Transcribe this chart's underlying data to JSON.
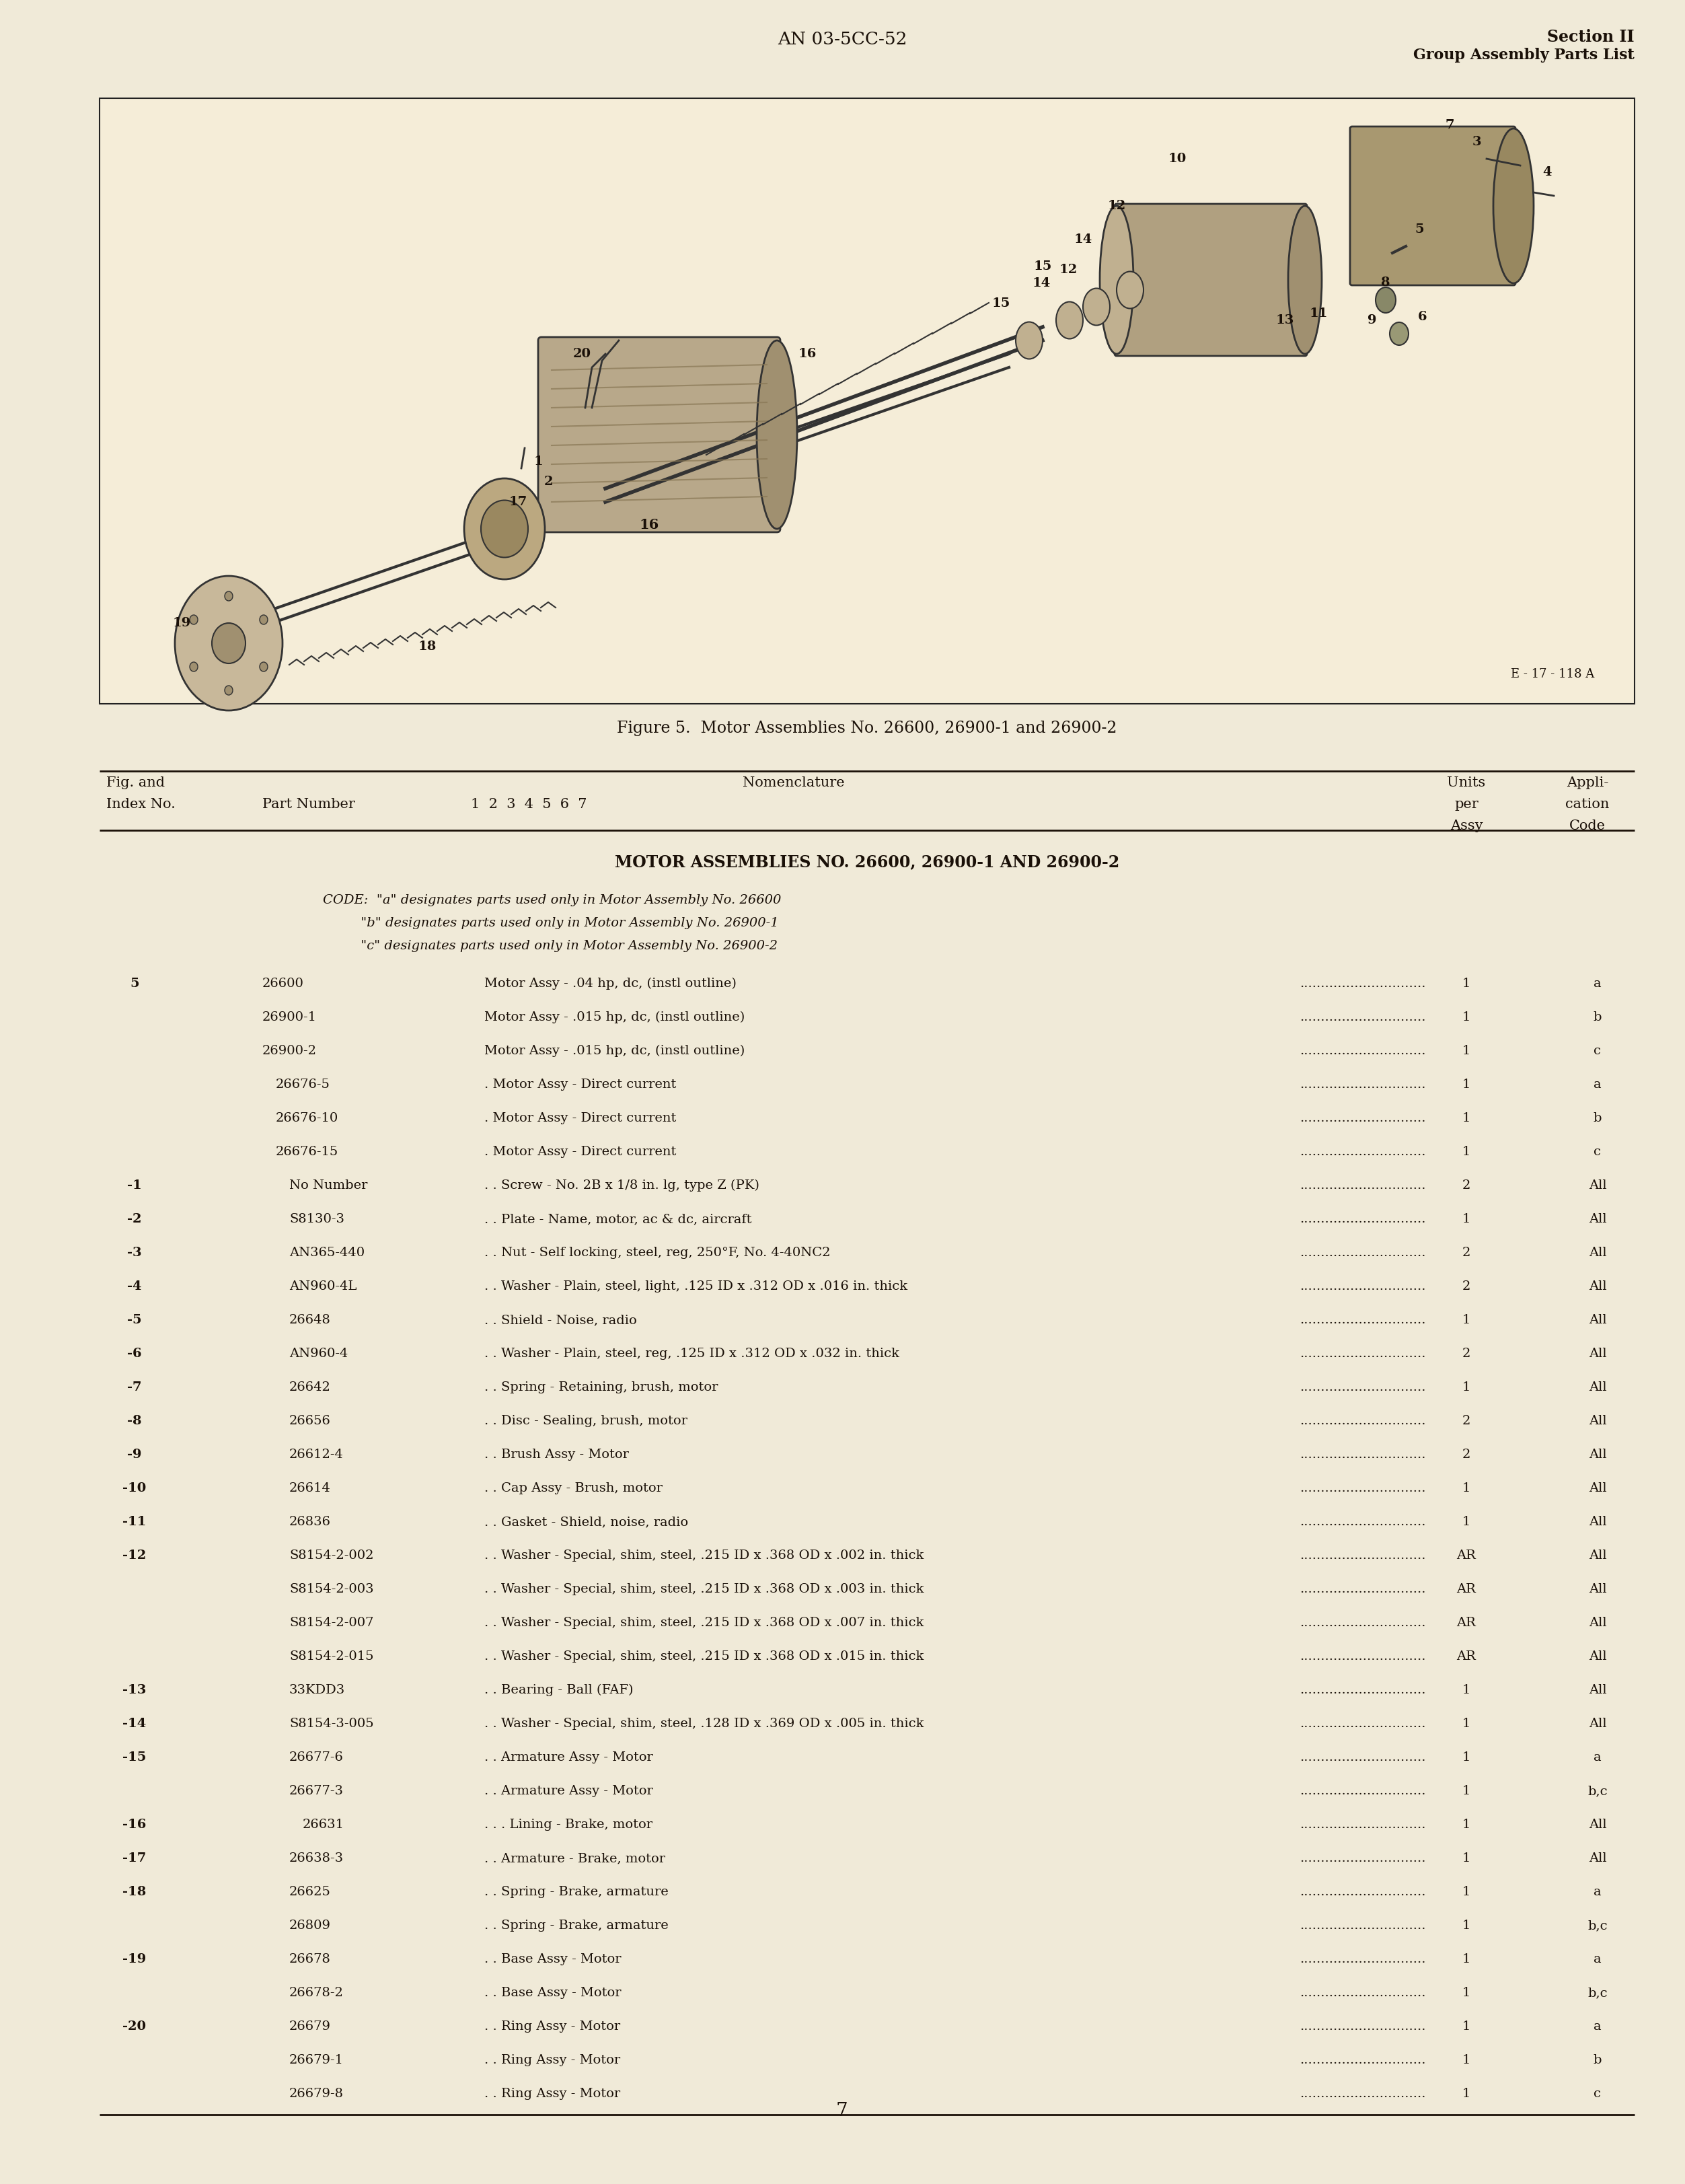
{
  "bg_color": "#f0ead8",
  "text_color": "#1a1008",
  "header_center": "AN 03-5CC-52",
  "header_right_line1": "Section II",
  "header_right_line2": "Group Assembly Parts List",
  "figure_caption": "Figure 5.  Motor Assemblies No. 26600, 26900-1 and 26900-2",
  "figure_label": "E - 17 - 118 A",
  "table_section_title": "MOTOR ASSEMBLIES NO. 26600, 26900-1 AND 26900-2",
  "code_lines": [
    "CODE:  \"a\" designates parts used only in Motor Assembly No. 26600",
    "         \"b\" designates parts used only in Motor Assembly No. 26900-1",
    "         \"c\" designates parts used only in Motor Assembly No. 26900-2"
  ],
  "page_number": "7",
  "col_hdr_fig": "Fig. and",
  "col_hdr_index": "Index No.",
  "col_hdr_part": "Part Number",
  "col_hdr_nomen": "Nomenclature",
  "col_hdr_subcols": "1  2  3  4  5  6  7",
  "col_hdr_units1": "Units",
  "col_hdr_units2": "per",
  "col_hdr_units3": "Assy",
  "col_hdr_appli1": "Appli-",
  "col_hdr_appli2": "cation",
  "col_hdr_appli3": "Code",
  "rows": [
    {
      "index": "5",
      "part": "26600",
      "indent": 0,
      "desc": "Motor Assy - .04 hp, dc, (instl outline)",
      "dots": true,
      "units": "1",
      "code": "a"
    },
    {
      "index": "",
      "part": "26900-1",
      "indent": 0,
      "desc": "Motor Assy - .015 hp, dc, (instl outline)",
      "dots": true,
      "units": "1",
      "code": "b"
    },
    {
      "index": "",
      "part": "26900-2",
      "indent": 0,
      "desc": "Motor Assy - .015 hp, dc, (instl outline)",
      "dots": true,
      "units": "1",
      "code": "c"
    },
    {
      "index": "",
      "part": "26676-5",
      "indent": 1,
      "desc": "Motor Assy - Direct current",
      "dots": true,
      "units": "1",
      "code": "a"
    },
    {
      "index": "",
      "part": "26676-10",
      "indent": 1,
      "desc": "Motor Assy - Direct current",
      "dots": true,
      "units": "1",
      "code": "b"
    },
    {
      "index": "",
      "part": "26676-15",
      "indent": 1,
      "desc": "Motor Assy - Direct current",
      "dots": true,
      "units": "1",
      "code": "c"
    },
    {
      "index": "-1",
      "part": "No Number",
      "indent": 2,
      "desc": "Screw - No. 2B x 1/8 in. lg, type Z (PK)",
      "dots": true,
      "units": "2",
      "code": "All"
    },
    {
      "index": "-2",
      "part": "S8130-3",
      "indent": 2,
      "desc": "Plate - Name, motor, ac & dc, aircraft",
      "dots": true,
      "units": "1",
      "code": "All"
    },
    {
      "index": "-3",
      "part": "AN365-440",
      "indent": 2,
      "desc": "Nut - Self locking, steel, reg, 250°F, No. 4-40NC2",
      "dots": true,
      "units": "2",
      "code": "All"
    },
    {
      "index": "-4",
      "part": "AN960-4L",
      "indent": 2,
      "desc": "Washer - Plain, steel, light, .125 ID x .312 OD x .016 in. thick",
      "dots": true,
      "units": "2",
      "code": "All"
    },
    {
      "index": "-5",
      "part": "26648",
      "indent": 2,
      "desc": "Shield - Noise, radio",
      "dots": true,
      "units": "1",
      "code": "All"
    },
    {
      "index": "-6",
      "part": "AN960-4",
      "indent": 2,
      "desc": "Washer - Plain, steel, reg, .125 ID x .312 OD x .032 in. thick",
      "dots": true,
      "units": "2",
      "code": "All"
    },
    {
      "index": "-7",
      "part": "26642",
      "indent": 2,
      "desc": "Spring - Retaining, brush, motor",
      "dots": true,
      "units": "1",
      "code": "All"
    },
    {
      "index": "-8",
      "part": "26656",
      "indent": 2,
      "desc": "Disc - Sealing, brush, motor",
      "dots": true,
      "units": "2",
      "code": "All"
    },
    {
      "index": "-9",
      "part": "26612-4",
      "indent": 2,
      "desc": "Brush Assy - Motor",
      "dots": true,
      "units": "2",
      "code": "All"
    },
    {
      "index": "-10",
      "part": "26614",
      "indent": 2,
      "desc": "Cap Assy - Brush, motor",
      "dots": true,
      "units": "1",
      "code": "All"
    },
    {
      "index": "-11",
      "part": "26836",
      "indent": 2,
      "desc": "Gasket - Shield, noise, radio",
      "dots": true,
      "units": "1",
      "code": "All"
    },
    {
      "index": "-12",
      "part": "S8154-2-002",
      "indent": 2,
      "desc": "Washer - Special, shim, steel, .215 ID x .368 OD x .002 in. thick",
      "dots": true,
      "units": "AR",
      "code": "All"
    },
    {
      "index": "",
      "part": "S8154-2-003",
      "indent": 2,
      "desc": "Washer - Special, shim, steel, .215 ID x .368 OD x .003 in. thick",
      "dots": true,
      "units": "AR",
      "code": "All"
    },
    {
      "index": "",
      "part": "S8154-2-007",
      "indent": 2,
      "desc": "Washer - Special, shim, steel, .215 ID x .368 OD x .007 in. thick",
      "dots": true,
      "units": "AR",
      "code": "All"
    },
    {
      "index": "",
      "part": "S8154-2-015",
      "indent": 2,
      "desc": "Washer - Special, shim, steel, .215 ID x .368 OD x .015 in. thick",
      "dots": true,
      "units": "AR",
      "code": "All"
    },
    {
      "index": "-13",
      "part": "33KDD3",
      "indent": 2,
      "desc": "Bearing - Ball (FAF)",
      "dots": true,
      "units": "1",
      "code": "All"
    },
    {
      "index": "-14",
      "part": "S8154-3-005",
      "indent": 2,
      "desc": "Washer - Special, shim, steel, .128 ID x .369 OD x .005 in. thick",
      "dots": true,
      "units": "1",
      "code": "All"
    },
    {
      "index": "-15",
      "part": "26677-6",
      "indent": 2,
      "desc": "Armature Assy - Motor",
      "dots": true,
      "units": "1",
      "code": "a"
    },
    {
      "index": "",
      "part": "26677-3",
      "indent": 2,
      "desc": "Armature Assy - Motor",
      "dots": true,
      "units": "1",
      "code": "b,c"
    },
    {
      "index": "-16",
      "part": "26631",
      "indent": 3,
      "desc": "Lining - Brake, motor",
      "dots": true,
      "units": "1",
      "code": "All"
    },
    {
      "index": "-17",
      "part": "26638-3",
      "indent": 2,
      "desc": "Armature - Brake, motor",
      "dots": true,
      "units": "1",
      "code": "All"
    },
    {
      "index": "-18",
      "part": "26625",
      "indent": 2,
      "desc": "Spring - Brake, armature",
      "dots": true,
      "units": "1",
      "code": "a"
    },
    {
      "index": "",
      "part": "26809",
      "indent": 2,
      "desc": "Spring - Brake, armature",
      "dots": true,
      "units": "1",
      "code": "b,c"
    },
    {
      "index": "-19",
      "part": "26678",
      "indent": 2,
      "desc": "Base Assy - Motor",
      "dots": true,
      "units": "1",
      "code": "a"
    },
    {
      "index": "",
      "part": "26678-2",
      "indent": 2,
      "desc": "Base Assy - Motor",
      "dots": true,
      "units": "1",
      "code": "b,c"
    },
    {
      "index": "-20",
      "part": "26679",
      "indent": 2,
      "desc": "Ring Assy - Motor",
      "dots": true,
      "units": "1",
      "code": "a"
    },
    {
      "index": "",
      "part": "26679-1",
      "indent": 2,
      "desc": "Ring Assy - Motor",
      "dots": true,
      "units": "1",
      "code": "b"
    },
    {
      "index": "",
      "part": "26679-8",
      "indent": 2,
      "desc": "Ring Assy - Motor",
      "dots": true,
      "units": "1",
      "code": "c"
    }
  ]
}
